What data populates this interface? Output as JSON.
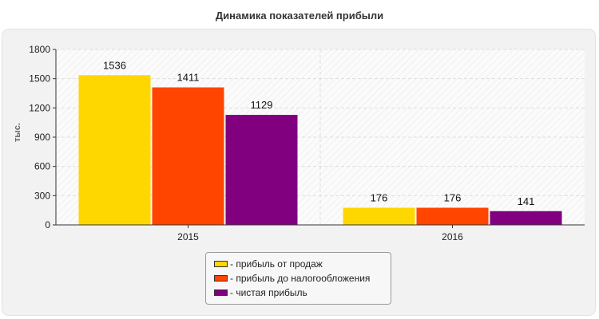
{
  "chart_data": {
    "type": "bar",
    "title": "Динамика показателей прибыли",
    "ylabel": "тыс.",
    "xlabel": "",
    "categories": [
      "2015",
      "2016"
    ],
    "ylim": [
      0,
      1800
    ],
    "yticks": [
      0,
      300,
      600,
      900,
      1200,
      1500,
      1800
    ],
    "grid": true,
    "legend_position": "bottom",
    "series": [
      {
        "name": "- прибыль от продаж",
        "color": "#ffd700",
        "values": [
          1536,
          176
        ]
      },
      {
        "name": "- прибыль до налогообложения",
        "color": "#ff4500",
        "values": [
          1411,
          176
        ]
      },
      {
        "name": "- чистая прибыль",
        "color": "#800080",
        "values": [
          1129,
          141
        ]
      }
    ]
  }
}
